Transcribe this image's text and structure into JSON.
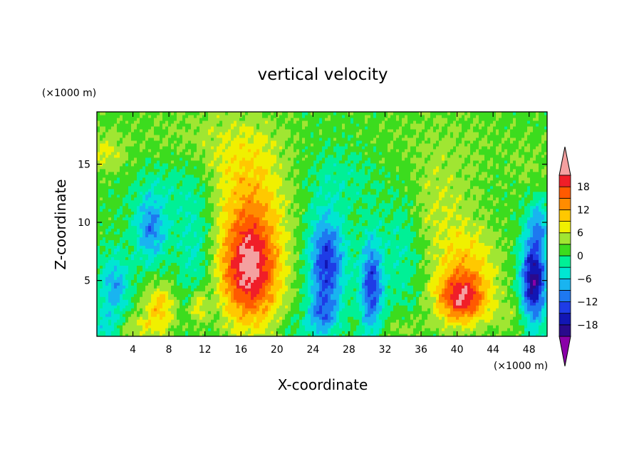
{
  "chart_data": {
    "type": "heatmap",
    "title": "vertical velocity",
    "xlabel": "X-coordinate",
    "ylabel": "Z-coordinate",
    "x_unit": "(×1000 m)",
    "y_unit": "(×1000 m)",
    "xlim": [
      0,
      50
    ],
    "ylim": [
      0.2,
      19.5
    ],
    "x_ticks": [
      4,
      8,
      12,
      16,
      20,
      24,
      28,
      32,
      36,
      40,
      44,
      48
    ],
    "y_ticks": [
      5,
      10,
      15
    ],
    "colorbar": {
      "levels": [
        -21,
        -18,
        -15,
        -12,
        -9,
        -6,
        -3,
        0,
        3,
        6,
        9,
        12,
        15,
        18,
        21
      ],
      "tick_values": [
        18,
        12,
        6,
        0,
        -6,
        -12,
        -18
      ],
      "tick_labels": [
        "18",
        "12",
        "6",
        "0",
        "−6",
        "−12",
        "−18"
      ],
      "colors": [
        "#8a00a8",
        "#2a0a8c",
        "#1216b4",
        "#1e3ce6",
        "#1e78f0",
        "#19b4f0",
        "#00e6d2",
        "#00f096",
        "#3cdc1e",
        "#a0e632",
        "#f0f000",
        "#ffc800",
        "#ff8c00",
        "#ff5a00",
        "#f01e28",
        "#f4a0a0"
      ],
      "extend": "both"
    },
    "features": [
      {
        "x": 17.0,
        "z": 6.0,
        "sx": 2.4,
        "sz": 3.4,
        "w": 21
      },
      {
        "x": 17.0,
        "z": 13.0,
        "sx": 3.0,
        "sz": 3.5,
        "w": 7
      },
      {
        "x": 40.5,
        "z": 3.5,
        "sx": 2.0,
        "sz": 1.6,
        "w": 18
      },
      {
        "x": 41.0,
        "z": 6.8,
        "sx": 2.6,
        "sz": 2.2,
        "w": 7
      },
      {
        "x": 38.0,
        "z": 11.5,
        "sx": 2.8,
        "sz": 2.8,
        "w": 4
      },
      {
        "x": 7.0,
        "z": 3.0,
        "sx": 1.2,
        "sz": 1.2,
        "w": 9
      },
      {
        "x": 11.3,
        "z": 2.8,
        "sx": 0.7,
        "sz": 1.1,
        "w": 8
      },
      {
        "x": 5.0,
        "z": 1.0,
        "sx": 2.5,
        "sz": 0.9,
        "w": 5
      },
      {
        "x": 6.0,
        "z": 9.5,
        "sx": 1.2,
        "sz": 2.0,
        "w": -11
      },
      {
        "x": 2.0,
        "z": 4.5,
        "sx": 1.2,
        "sz": 2.0,
        "w": -9
      },
      {
        "x": 1.0,
        "z": 1.0,
        "sx": 1.0,
        "sz": 1.0,
        "w": -6
      },
      {
        "x": 25.5,
        "z": 6.5,
        "sx": 1.4,
        "sz": 3.0,
        "w": -16
      },
      {
        "x": 25.0,
        "z": 2.0,
        "sx": 1.2,
        "sz": 1.2,
        "w": -8
      },
      {
        "x": 30.5,
        "z": 4.5,
        "sx": 0.9,
        "sz": 3.0,
        "w": -15
      },
      {
        "x": 48.5,
        "z": 5.0,
        "sx": 1.0,
        "sz": 2.6,
        "w": -21
      },
      {
        "x": 49.0,
        "z": 10.0,
        "sx": 0.8,
        "sz": 1.5,
        "w": -8
      },
      {
        "x": 11.0,
        "z": 8.0,
        "sx": 1.5,
        "sz": 4.0,
        "w": -5
      },
      {
        "x": 34.0,
        "z": 8.0,
        "sx": 1.5,
        "sz": 4.0,
        "w": -4
      },
      {
        "x": 34.0,
        "z": 1.0,
        "sx": 2.0,
        "sz": 0.8,
        "w": 3
      },
      {
        "x": 46.0,
        "z": 2.0,
        "sx": 1.5,
        "sz": 1.2,
        "w": 3
      },
      {
        "x": 22.0,
        "z": 1.0,
        "sx": 1.5,
        "sz": 0.8,
        "w": -2
      },
      {
        "x": 12.0,
        "z": 17.0,
        "sx": 6.0,
        "sz": 2.5,
        "w": 3
      },
      {
        "x": 38.0,
        "z": 17.0,
        "sx": 6.0,
        "sz": 2.5,
        "w": 2
      },
      {
        "x": 1.0,
        "z": 16.0,
        "sx": 1.5,
        "sz": 1.2,
        "w": 5
      },
      {
        "x": 48.0,
        "z": 15.0,
        "sx": 1.5,
        "sz": 1.5,
        "w": 2
      },
      {
        "x": 27.0,
        "z": 14.0,
        "sx": 3.0,
        "sz": 2.0,
        "w": -3
      },
      {
        "x": 8.0,
        "z": 13.5,
        "sx": 3.0,
        "sz": 2.0,
        "w": -3
      }
    ]
  }
}
